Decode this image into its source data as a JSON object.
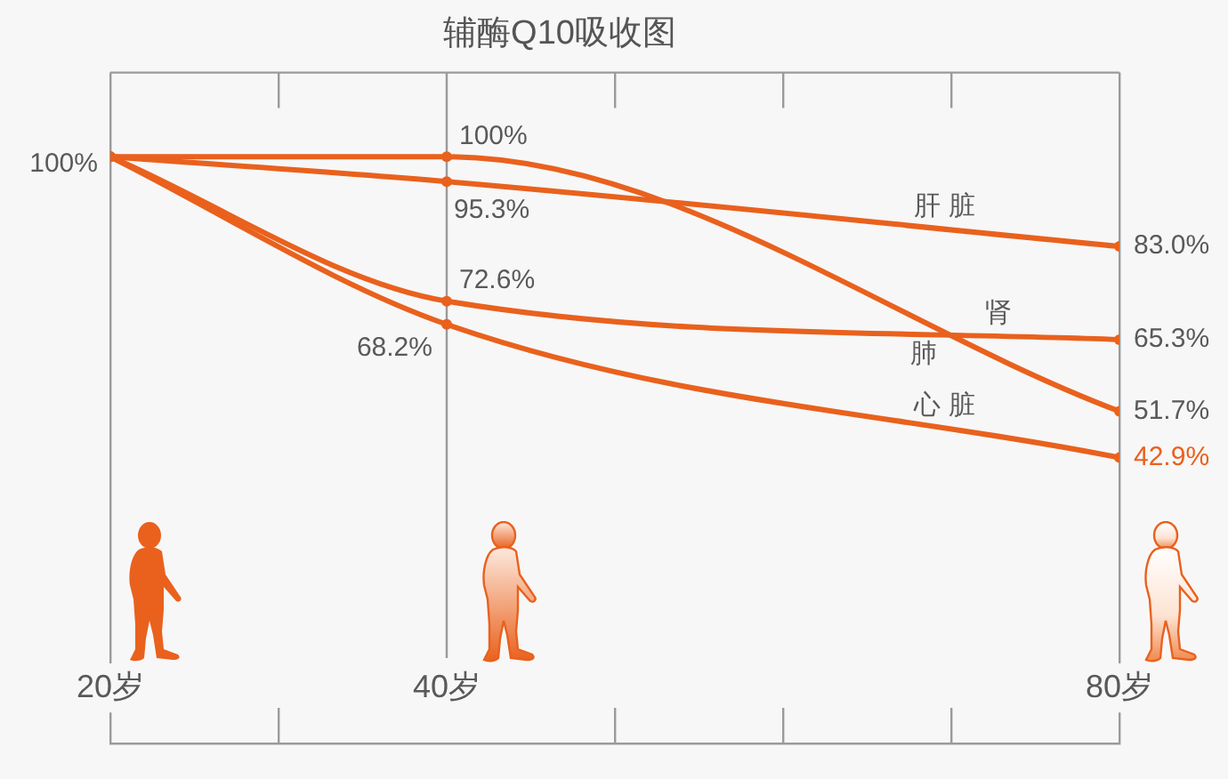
{
  "chart_data": {
    "type": "line",
    "title": "辅酶Q10吸收图",
    "x": [
      20,
      40,
      80
    ],
    "xlim": [
      20,
      80
    ],
    "xticks": [
      {
        "value": 20,
        "label": "20岁"
      },
      {
        "value": 30,
        "label": null
      },
      {
        "value": 40,
        "label": "40岁"
      },
      {
        "value": 50,
        "label": null
      },
      {
        "value": 60,
        "label": null
      },
      {
        "value": 70,
        "label": null
      },
      {
        "value": 80,
        "label": "80岁"
      }
    ],
    "grid": "x",
    "legend": false,
    "marker": "circle",
    "ref_lines": [
      {
        "axis": "x",
        "value": 40,
        "color": "#9a9a9a"
      }
    ],
    "annotations": [
      {
        "text": "100%",
        "x": 20,
        "y": 100
      }
    ],
    "series": [
      {
        "name": "肝 脏",
        "color": "#e9611d",
        "values": [
          100,
          95.3,
          83.0
        ],
        "value_labels": [
          null,
          "95.3%",
          "83.0%"
        ]
      },
      {
        "name": "肺",
        "color": "#e9611d",
        "values": [
          100,
          100,
          51.7
        ],
        "value_labels": [
          null,
          "100%",
          "51.7%"
        ]
      },
      {
        "name": "肾",
        "color": "#e9611d",
        "values": [
          100,
          72.6,
          65.3
        ],
        "value_labels": [
          null,
          "72.6%",
          "65.3%"
        ]
      },
      {
        "name": "心 脏",
        "color": "#e9611d",
        "values": [
          100,
          68.2,
          42.9
        ],
        "value_labels": [
          null,
          "68.2%",
          "42.9%"
        ]
      }
    ]
  }
}
